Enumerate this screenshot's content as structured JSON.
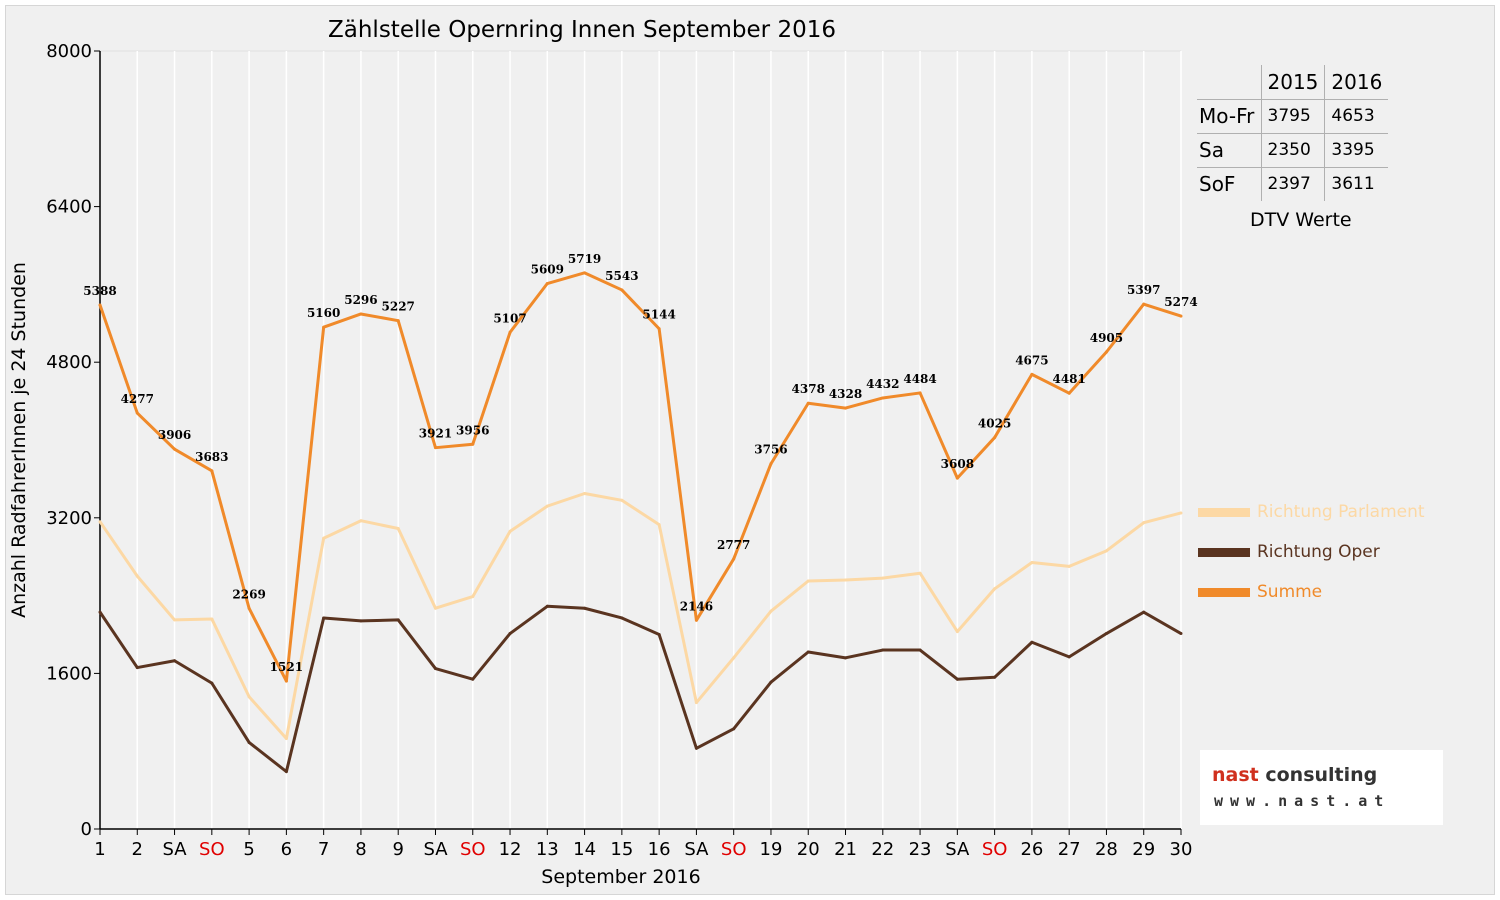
{
  "colors": {
    "parlament": "#fcd8a4",
    "oper": "#5a3420",
    "summe": "#f08a2a",
    "weekend_label": "#e00000",
    "label": "#000000"
  },
  "chart_data": {
    "type": "line",
    "title": "Zählstelle Opernring Innen September 2016",
    "xlabel": "September 2016",
    "ylabel": "Anzahl RadfahrerInnen je 24 Stunden",
    "ylim": [
      0,
      8000
    ],
    "yticks": [
      0,
      1600,
      3200,
      4800,
      6400,
      8000
    ],
    "grid": {
      "vertical": true,
      "horizontal": false
    },
    "legend_position": "right",
    "x": [
      1,
      2,
      3,
      4,
      5,
      6,
      7,
      8,
      9,
      10,
      11,
      12,
      13,
      14,
      15,
      16,
      17,
      18,
      19,
      20,
      21,
      22,
      23,
      24,
      25,
      26,
      27,
      28,
      29,
      30
    ],
    "x_tick_labels": [
      "1",
      "2",
      "SA",
      "SO",
      "5",
      "6",
      "7",
      "8",
      "9",
      "SA",
      "SO",
      "12",
      "13",
      "14",
      "15",
      "16",
      "SA",
      "SO",
      "19",
      "20",
      "21",
      "22",
      "23",
      "SA",
      "SO",
      "26",
      "27",
      "28",
      "29",
      "30"
    ],
    "weekend_red_days": [
      4,
      11,
      18,
      25
    ],
    "series": [
      {
        "name": "Richtung Parlament",
        "color_key": "parlament",
        "show_labels": false,
        "values": [
          3160,
          2600,
          2150,
          2160,
          1360,
          930,
          2990,
          3170,
          3090,
          2270,
          2390,
          3060,
          3320,
          3450,
          3380,
          3130,
          1300,
          1760,
          2240,
          2550,
          2560,
          2580,
          2630,
          2030,
          2470,
          2740,
          2700,
          2860,
          3150,
          3250
        ]
      },
      {
        "name": "Richtung Oper",
        "color_key": "oper",
        "show_labels": false,
        "values": [
          2230,
          1660,
          1730,
          1500,
          890,
          590,
          2170,
          2140,
          2150,
          1650,
          1540,
          2010,
          2290,
          2270,
          2170,
          2000,
          830,
          1030,
          1510,
          1820,
          1760,
          1840,
          1840,
          1540,
          1560,
          1920,
          1770,
          2010,
          2230,
          2010
        ]
      },
      {
        "name": "Summe",
        "color_key": "summe",
        "show_labels": true,
        "values": [
          5388,
          4277,
          3906,
          3683,
          2269,
          1521,
          5160,
          5296,
          5227,
          3921,
          3956,
          5107,
          5609,
          5719,
          5543,
          5144,
          2146,
          2777,
          3756,
          4378,
          4328,
          4432,
          4484,
          3608,
          4025,
          4675,
          4481,
          4905,
          5397,
          5274
        ],
        "labels": [
          "5388",
          "4277",
          "3906",
          "3683",
          "2269",
          "1521",
          "5160",
          "5296",
          "5227",
          "3921",
          "3956",
          "5107",
          "5609",
          "5719",
          "5543",
          "5144",
          "2146",
          "2777",
          "3756",
          "4378",
          "4328",
          "4432",
          "4484",
          "3608",
          "4025",
          "4675",
          "4481",
          "4905",
          "5397",
          "5274"
        ]
      }
    ]
  },
  "dtv_table": {
    "columns": [
      "",
      "2015",
      "2016"
    ],
    "rows": [
      {
        "label": "Mo-Fr",
        "v2015": "3795",
        "v2016": "4653"
      },
      {
        "label": "Sa",
        "v2015": "2350",
        "v2016": "3395"
      },
      {
        "label": "SoF",
        "v2015": "2397",
        "v2016": "3611"
      }
    ],
    "caption": "DTV Werte"
  },
  "logo": {
    "brand_word1": "nast",
    "brand_word2": " consulting",
    "url": "www.nast.at"
  }
}
